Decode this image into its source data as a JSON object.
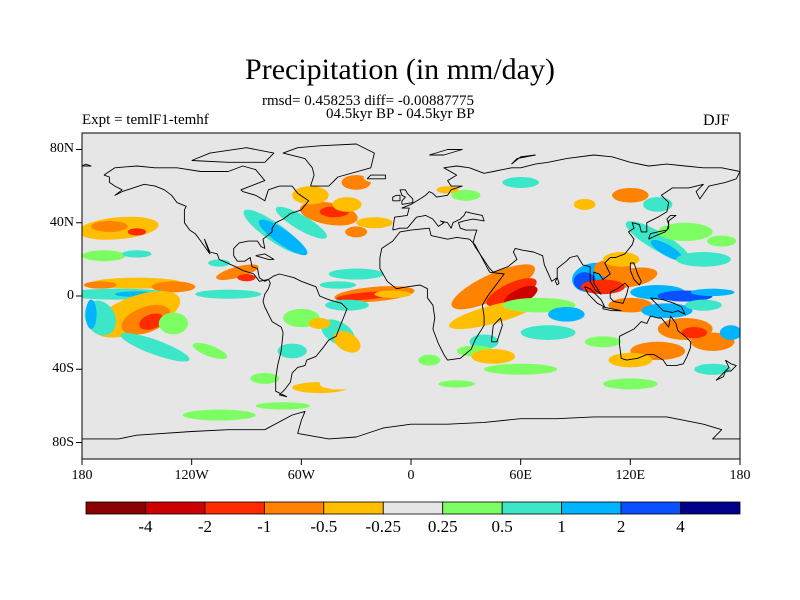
{
  "title": "Precipitation (in mm/day)",
  "stats_line": "rmsd= 0.458253 diff= -0.00887775",
  "period_line": "04.5kyr BP - 04.5kyr BP",
  "experiment_label": "Expt = temlF1-temhf",
  "season_label": "DJF",
  "lat_axis": {
    "ticks": [
      {
        "label": "80N",
        "lat": 80
      },
      {
        "label": "40N",
        "lat": 40
      },
      {
        "label": "0",
        "lat": 0
      },
      {
        "label": "40S",
        "lat": -40
      },
      {
        "label": "80S",
        "lat": -80
      }
    ]
  },
  "lon_axis": {
    "ticks": [
      {
        "label": "180",
        "lon": -180
      },
      {
        "label": "120W",
        "lon": -120
      },
      {
        "label": "60W",
        "lon": -60
      },
      {
        "label": "0",
        "lon": 0
      },
      {
        "label": "60E",
        "lon": 60
      },
      {
        "label": "120E",
        "lon": 120
      },
      {
        "label": "180",
        "lon": 180
      }
    ]
  },
  "colorbar": {
    "colors": [
      "#8b0000",
      "#cd0000",
      "#ff2a00",
      "#ff8200",
      "#ffbf00",
      "#e6e6e6",
      "#7dff64",
      "#3ce6c8",
      "#00b4ff",
      "#0a50ff",
      "#00008b"
    ],
    "labels": [
      "-4",
      "-2",
      "-1",
      "-0.5",
      "-0.25",
      "0.25",
      "0.5",
      "1",
      "2",
      "4"
    ]
  },
  "map_background_color": "#e6e6e6"
}
